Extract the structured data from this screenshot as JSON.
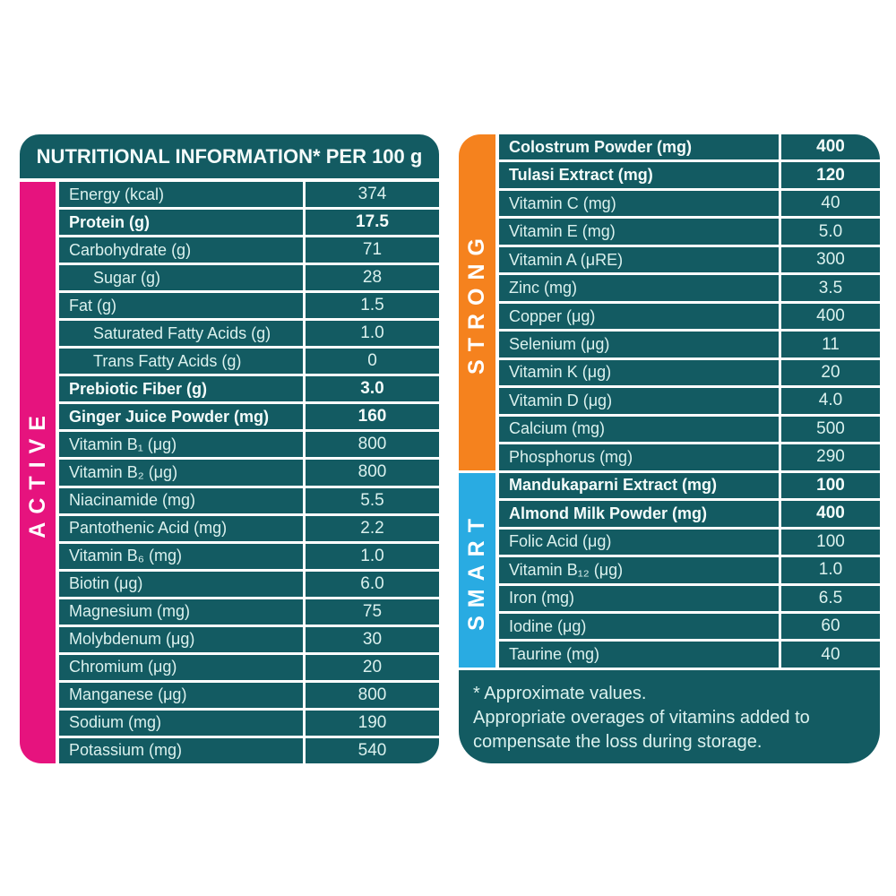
{
  "colors": {
    "teal": "#135B62",
    "pink": "#E6137E",
    "orange": "#F5821E",
    "blue": "#29ABE2",
    "text_light": "#DBF1EE"
  },
  "left_panel": {
    "header": "NUTRITIONAL INFORMATION* PER 100 g",
    "band_label": "ACTIVE",
    "rows": [
      {
        "label": "Energy (kcal)",
        "value": "374",
        "bold": false,
        "indent": false
      },
      {
        "label": "Protein (g)",
        "value": "17.5",
        "bold": true,
        "indent": false
      },
      {
        "label": "Carbohydrate (g)",
        "value": "71",
        "bold": false,
        "indent": false
      },
      {
        "label": "Sugar (g)",
        "value": "28",
        "bold": false,
        "indent": true
      },
      {
        "label": "Fat (g)",
        "value": "1.5",
        "bold": false,
        "indent": false
      },
      {
        "label": "Saturated Fatty Acids (g)",
        "value": "1.0",
        "bold": false,
        "indent": true
      },
      {
        "label": "Trans Fatty Acids (g)",
        "value": "0",
        "bold": false,
        "indent": true
      },
      {
        "label": "Prebiotic Fiber (g)",
        "value": "3.0",
        "bold": true,
        "indent": false
      },
      {
        "label": "Ginger Juice Powder (mg)",
        "value": "160",
        "bold": true,
        "indent": false
      },
      {
        "label": "Vitamin B₁ (μg)",
        "value": "800",
        "bold": false,
        "indent": false
      },
      {
        "label": "Vitamin B₂ (μg)",
        "value": "800",
        "bold": false,
        "indent": false
      },
      {
        "label": "Niacinamide (mg)",
        "value": "5.5",
        "bold": false,
        "indent": false
      },
      {
        "label": "Pantothenic Acid (mg)",
        "value": "2.2",
        "bold": false,
        "indent": false
      },
      {
        "label": "Vitamin B₆ (mg)",
        "value": "1.0",
        "bold": false,
        "indent": false
      },
      {
        "label": "Biotin (μg)",
        "value": "6.0",
        "bold": false,
        "indent": false
      },
      {
        "label": "Magnesium (mg)",
        "value": "75",
        "bold": false,
        "indent": false
      },
      {
        "label": "Molybdenum (μg)",
        "value": "30",
        "bold": false,
        "indent": false
      },
      {
        "label": "Chromium (μg)",
        "value": "20",
        "bold": false,
        "indent": false
      },
      {
        "label": "Manganese (μg)",
        "value": "800",
        "bold": false,
        "indent": false
      },
      {
        "label": "Sodium (mg)",
        "value": "190",
        "bold": false,
        "indent": false
      },
      {
        "label": "Potassium (mg)",
        "value": "540",
        "bold": false,
        "indent": false
      }
    ]
  },
  "right_panel": {
    "strong_band_label": "STRONG",
    "smart_band_label": "SMART",
    "rows": [
      {
        "label": "Colostrum Powder (mg)",
        "value": "400",
        "bold": true,
        "band": "strong"
      },
      {
        "label": "Tulasi Extract (mg)",
        "value": "120",
        "bold": true,
        "band": "strong"
      },
      {
        "label": "Vitamin C (mg)",
        "value": "40",
        "bold": false,
        "band": "strong"
      },
      {
        "label": "Vitamin E (mg)",
        "value": "5.0",
        "bold": false,
        "band": "strong"
      },
      {
        "label": "Vitamin A (μRE)",
        "value": "300",
        "bold": false,
        "band": "strong"
      },
      {
        "label": "Zinc (mg)",
        "value": "3.5",
        "bold": false,
        "band": "strong"
      },
      {
        "label": "Copper (μg)",
        "value": "400",
        "bold": false,
        "band": "strong"
      },
      {
        "label": "Selenium (μg)",
        "value": "11",
        "bold": false,
        "band": "strong"
      },
      {
        "label": "Vitamin K (μg)",
        "value": "20",
        "bold": false,
        "band": "strong"
      },
      {
        "label": "Vitamin D (μg)",
        "value": "4.0",
        "bold": false,
        "band": "strong"
      },
      {
        "label": "Calcium (mg)",
        "value": "500",
        "bold": false,
        "band": "strong"
      },
      {
        "label": "Phosphorus (mg)",
        "value": "290",
        "bold": false,
        "band": "strong"
      },
      {
        "label": "Mandukaparni Extract (mg)",
        "value": "100",
        "bold": true,
        "band": "smart"
      },
      {
        "label": "Almond Milk Powder (mg)",
        "value": "400",
        "bold": true,
        "band": "smart"
      },
      {
        "label": "Folic Acid (μg)",
        "value": "100",
        "bold": false,
        "band": "smart"
      },
      {
        "label": "Vitamin B₁₂ (μg)",
        "value": "1.0",
        "bold": false,
        "band": "smart"
      },
      {
        "label": "Iron (mg)",
        "value": "6.5",
        "bold": false,
        "band": "smart"
      },
      {
        "label": "Iodine (μg)",
        "value": "60",
        "bold": false,
        "band": "smart"
      },
      {
        "label": "Taurine (mg)",
        "value": "40",
        "bold": false,
        "band": "smart"
      }
    ],
    "footnote_lines": [
      "* Approximate values.",
      "Appropriate overages of vitamins added to",
      "compensate the loss during storage."
    ]
  }
}
